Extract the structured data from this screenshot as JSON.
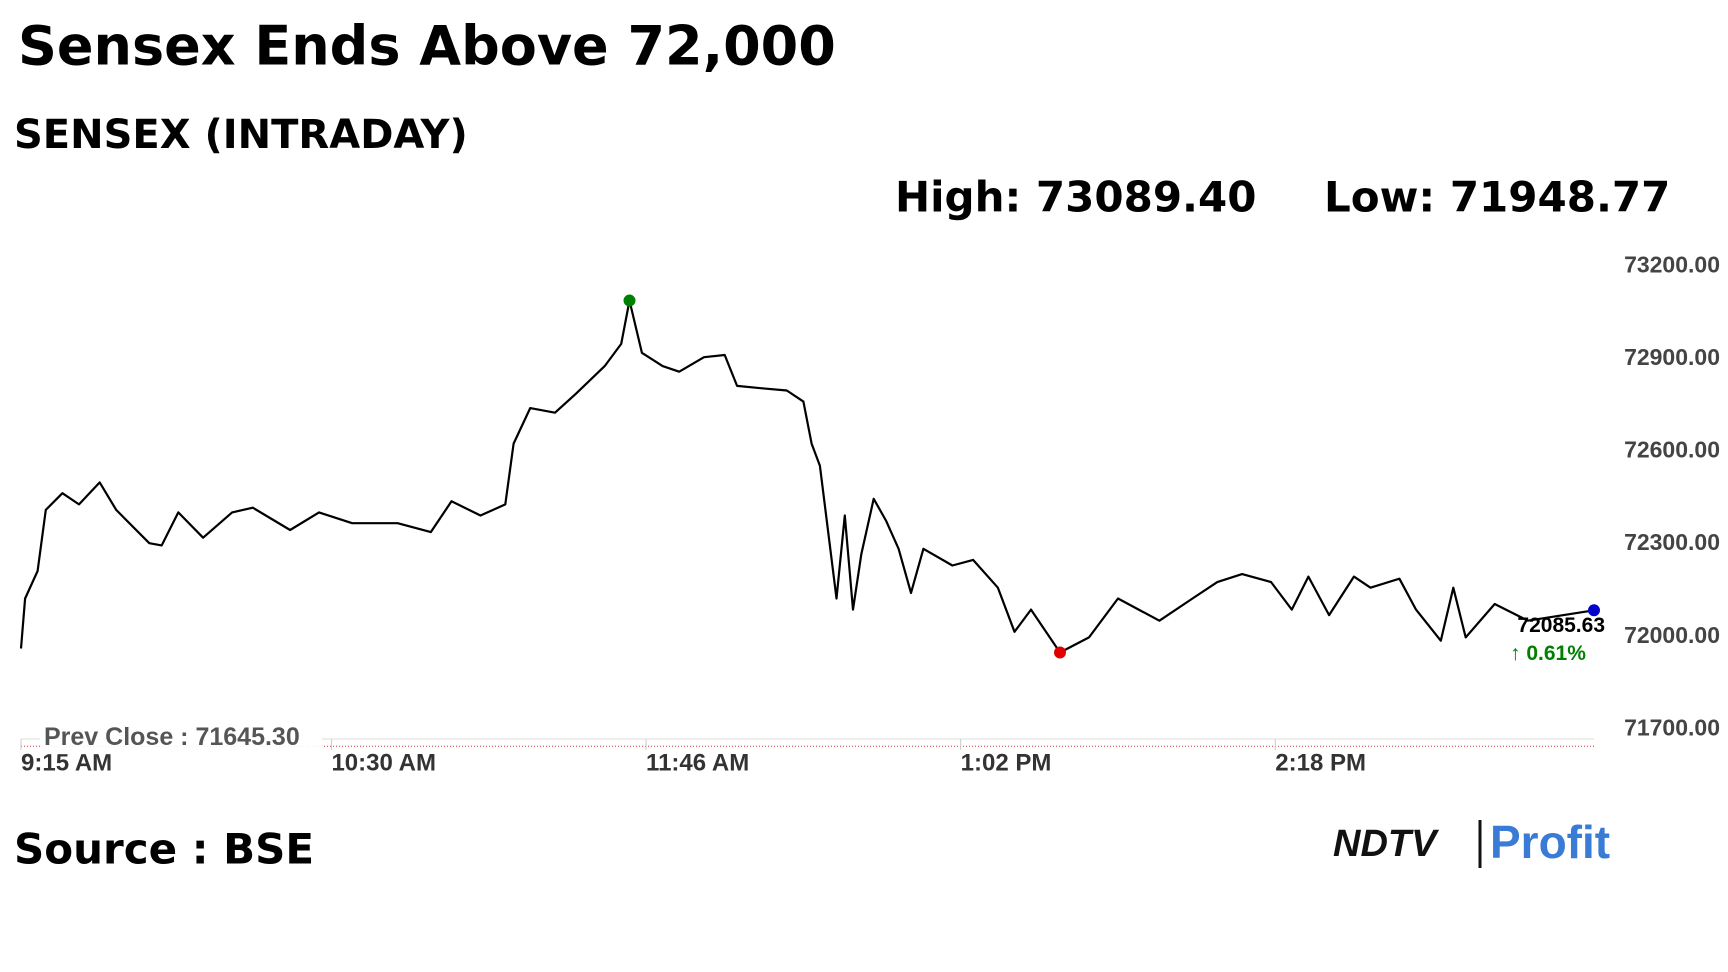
{
  "chart_data": {
    "type": "line",
    "title": "Sensex Ends Above 72,000",
    "subtitle": "SENSEX (INTRADAY)",
    "source": "Source : BSE",
    "brand": {
      "left": "NDTV",
      "right": "Profit"
    },
    "high": {
      "label": "High: 73089.40",
      "value": 73089.4,
      "time": "11:42 AM",
      "color": "#008000"
    },
    "low": {
      "label": "Low: 71948.77",
      "value": 71948.77,
      "time": "1:26 PM",
      "color": "#e00000"
    },
    "last": {
      "label": "72085.63",
      "value": 72085.63,
      "time": "3:35 PM",
      "change_label": "↑ 0.61%",
      "color": "#0000cc"
    },
    "prev_close": {
      "label": "Prev Close : 71645.30",
      "value": 71645.3
    },
    "x": [
      "9:15 AM",
      "9:16 AM",
      "9:19 AM",
      "9:21 AM",
      "9:25 AM",
      "9:29 AM",
      "9:34 AM",
      "9:38 AM",
      "9:46 AM",
      "9:49 AM",
      "9:53 AM",
      "9:59 AM",
      "10:06 AM",
      "10:11 AM",
      "10:20 AM",
      "10:27 AM",
      "10:35 AM",
      "10:46 AM",
      "10:54 AM",
      "10:59 AM",
      "11:06 AM",
      "11:12 AM",
      "11:14 AM",
      "11:18 AM",
      "11:24 AM",
      "11:29 AM",
      "11:36 AM",
      "11:40 AM",
      "11:42 AM",
      "11:45 AM",
      "11:50 AM",
      "11:54 AM",
      "12:00 PM",
      "12:05 PM",
      "12:08 PM",
      "12:14 PM",
      "12:20 PM",
      "12:24 PM",
      "12:26 PM",
      "12:28 PM",
      "12:30 PM",
      "12:32 PM",
      "12:34 PM",
      "12:36 PM",
      "12:38 PM",
      "12:41 PM",
      "12:44 PM",
      "12:47 PM",
      "12:50 PM",
      "12:53 PM",
      "1:00 PM",
      "1:05 PM",
      "1:11 PM",
      "1:15 PM",
      "1:19 PM",
      "1:26 PM",
      "1:33 PM",
      "1:40 PM",
      "1:45 PM",
      "1:50 PM",
      "1:58 PM",
      "2:04 PM",
      "2:10 PM",
      "2:17 PM",
      "2:22 PM",
      "2:26 PM",
      "2:31 PM",
      "2:37 PM",
      "2:41 PM",
      "2:48 PM",
      "2:52 PM",
      "2:58 PM",
      "3:01 PM",
      "3:04 PM",
      "3:11 PM",
      "3:19 PM",
      "3:35 PM"
    ],
    "series": [
      {
        "name": "SENSEX",
        "color": "#000000",
        "values": [
          71962,
          72124,
          72213,
          72411,
          72465,
          72429,
          72500,
          72411,
          72303,
          72296,
          72403,
          72321,
          72403,
          72418,
          72346,
          72403,
          72368,
          72368,
          72339,
          72439,
          72393,
          72429,
          72626,
          72741,
          72726,
          72787,
          72877,
          72949,
          73089.4,
          72920,
          72877,
          72859,
          72906,
          72913,
          72813,
          72805,
          72798,
          72762,
          72626,
          72554,
          72339,
          72124,
          72393,
          72088,
          72267,
          72447,
          72375,
          72285,
          72142,
          72285,
          72231,
          72249,
          72159,
          72016,
          72088,
          71948.77,
          71998,
          72124,
          72088,
          72052,
          72124,
          72177,
          72203,
          72177,
          72088,
          72195,
          72070,
          72195,
          72159,
          72188,
          72088,
          71987,
          72159,
          71998,
          72106,
          72052,
          72085.63
        ]
      }
    ],
    "xlim": [
      "9:15 AM",
      "3:35 PM"
    ],
    "xticks": [
      "9:15 AM",
      "10:30 AM",
      "11:46 AM",
      "1:02 PM",
      "2:18 PM"
    ],
    "ylim": [
      71620,
      73250
    ],
    "yticks": [
      {
        "value": 71700,
        "label": "71700.00"
      },
      {
        "value": 72000,
        "label": "72000.00"
      },
      {
        "value": 72300,
        "label": "72300.00"
      },
      {
        "value": 72600,
        "label": "72600.00"
      },
      {
        "value": 72900,
        "label": "72900.00"
      },
      {
        "value": 73200,
        "label": "73200.00"
      }
    ],
    "grid": false
  }
}
